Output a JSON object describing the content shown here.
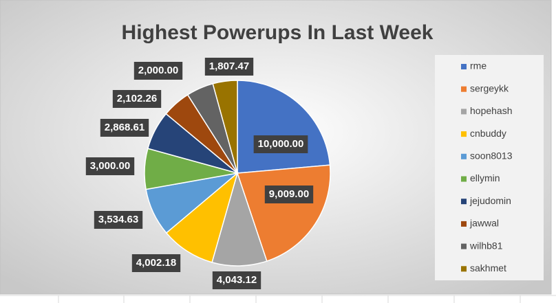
{
  "chart_data": {
    "type": "pie",
    "title": "Highest Powerups In Last Week",
    "categories": [
      "rme",
      "sergeykk",
      "hopehash",
      "cnbuddy",
      "soon8013",
      "ellymin",
      "jejudomin",
      "jawwal",
      "wilhb81",
      "sakhmet"
    ],
    "values": [
      10000,
      9009,
      4043.12,
      4002.18,
      3534.63,
      3000,
      2868.61,
      2102.26,
      2000,
      1807.47
    ],
    "value_labels": [
      "10,000.00",
      "9,009.00",
      "4,043.12",
      "4,002.18",
      "3,534.63",
      "3,000.00",
      "2,868.61",
      "2,102.26",
      "2,000.00",
      "1,807.47"
    ],
    "colors": [
      "#4472c4",
      "#ed7d31",
      "#a5a5a5",
      "#ffc000",
      "#5b9bd5",
      "#70ad47",
      "#264478",
      "#9e480e",
      "#636363",
      "#997300"
    ],
    "legend": "right"
  }
}
